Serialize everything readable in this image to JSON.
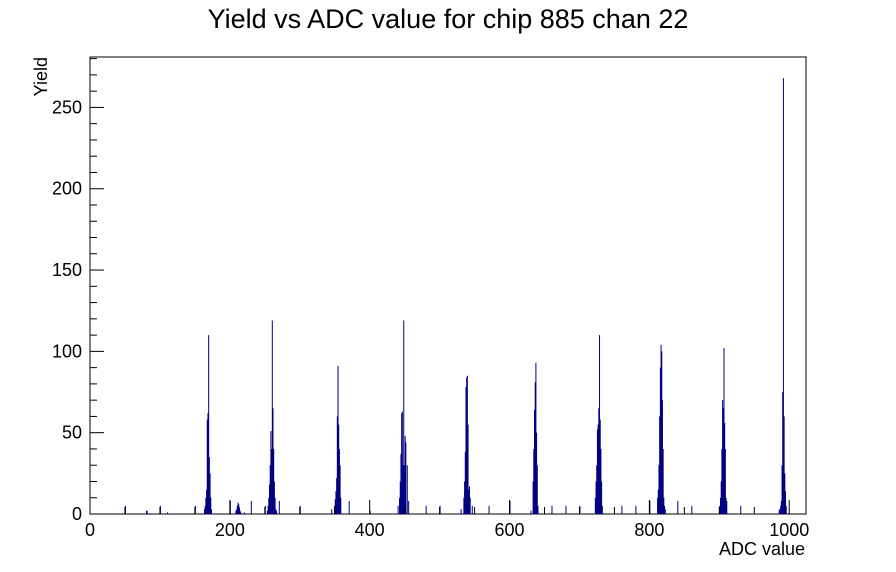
{
  "chart_data": {
    "type": "bar",
    "title": "Yield vs ADC value for chip 885 chan 22",
    "xlabel": "ADC value",
    "ylabel": "Yield",
    "xlim": [
      0,
      1024
    ],
    "ylim": [
      0,
      281
    ],
    "x_ticks": [
      0,
      200,
      400,
      600,
      800,
      1000
    ],
    "y_ticks": [
      0,
      50,
      100,
      150,
      200,
      250
    ],
    "grid": false,
    "legend": "none",
    "series_color": "#000080",
    "series": [
      {
        "x": [
          50,
          80,
          81,
          100,
          110,
          150,
          163,
          164,
          165,
          166,
          167,
          168,
          169,
          170,
          171,
          172,
          173,
          200,
          208,
          209,
          210,
          211,
          212,
          213,
          214,
          215,
          220,
          230,
          250,
          253,
          254,
          255,
          256,
          257,
          258,
          259,
          260,
          261,
          262,
          263,
          264,
          265,
          266,
          270,
          300,
          345,
          349,
          350,
          351,
          352,
          353,
          354,
          355,
          356,
          357,
          358,
          370,
          400,
          440,
          442,
          443,
          444,
          445,
          446,
          447,
          448,
          449,
          450,
          451,
          453,
          455,
          480,
          500,
          530,
          534,
          535,
          536,
          537,
          538,
          539,
          540,
          541,
          542,
          543,
          546,
          570,
          600,
          630,
          633,
          634,
          635,
          636,
          637,
          638,
          639,
          640,
          660,
          680,
          700,
          722,
          723,
          724,
          725,
          726,
          727,
          728,
          729,
          730,
          731,
          732,
          760,
          780,
          800,
          811,
          812,
          813,
          814,
          815,
          816,
          817,
          818,
          819,
          820,
          821,
          822,
          840,
          860,
          900,
          901,
          902,
          903,
          904,
          905,
          906,
          907,
          908,
          909,
          910,
          930,
          985,
          986,
          987,
          988,
          989,
          990,
          991,
          992,
          993,
          994,
          995
        ],
        "values": [
          5,
          2,
          2,
          5,
          1,
          5,
          3,
          5,
          10,
          15,
          58,
          62,
          110,
          35,
          25,
          10,
          3,
          8,
          2,
          3,
          5,
          7,
          6,
          4,
          2,
          1,
          1,
          8,
          5,
          2,
          5,
          10,
          18,
          30,
          51,
          40,
          119,
          65,
          40,
          20,
          10,
          3,
          2,
          8,
          5,
          3,
          5,
          9,
          14,
          22,
          60,
          91,
          55,
          40,
          30,
          10,
          8,
          2,
          5,
          10,
          20,
          37,
          62,
          63,
          30,
          119,
          30,
          48,
          44,
          30,
          8,
          5,
          5,
          3,
          10,
          20,
          38,
          78,
          84,
          85,
          55,
          15,
          17,
          10,
          5,
          5,
          8,
          2,
          20,
          40,
          64,
          81,
          93,
          50,
          30,
          5,
          5,
          5,
          5,
          10,
          20,
          30,
          52,
          55,
          65,
          110,
          58,
          40,
          20,
          5,
          5,
          5,
          8,
          10,
          15,
          30,
          60,
          90,
          104,
          100,
          70,
          40,
          10,
          5,
          3,
          8,
          5,
          5,
          10,
          20,
          40,
          70,
          65,
          102,
          56,
          40,
          10,
          8,
          5,
          3,
          2,
          5,
          8,
          30,
          75,
          268,
          60,
          25,
          14,
          5
        ]
      }
    ]
  }
}
